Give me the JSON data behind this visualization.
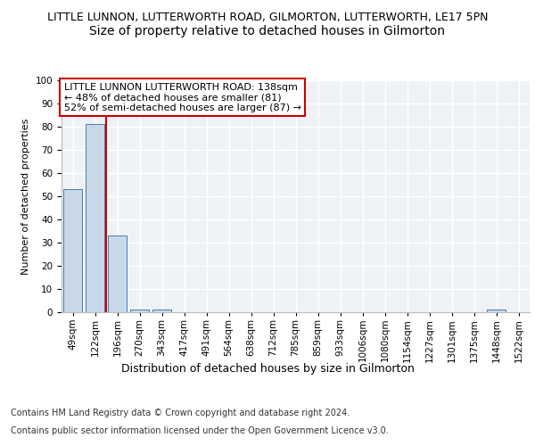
{
  "title": "LITTLE LUNNON, LUTTERWORTH ROAD, GILMORTON, LUTTERWORTH, LE17 5PN",
  "subtitle": "Size of property relative to detached houses in Gilmorton",
  "xlabel": "Distribution of detached houses by size in Gilmorton",
  "ylabel": "Number of detached properties",
  "footer_line1": "Contains HM Land Registry data © Crown copyright and database right 2024.",
  "footer_line2": "Contains public sector information licensed under the Open Government Licence v3.0.",
  "annotation_line1": "LITTLE LUNNON LUTTERWORTH ROAD: 138sqm",
  "annotation_line2": "← 48% of detached houses are smaller (81)",
  "annotation_line3": "52% of semi-detached houses are larger (87) →",
  "bar_labels": [
    "49sqm",
    "122sqm",
    "196sqm",
    "270sqm",
    "343sqm",
    "417sqm",
    "491sqm",
    "564sqm",
    "638sqm",
    "712sqm",
    "785sqm",
    "859sqm",
    "933sqm",
    "1006sqm",
    "1080sqm",
    "1154sqm",
    "1227sqm",
    "1301sqm",
    "1375sqm",
    "1448sqm",
    "1522sqm"
  ],
  "bar_values": [
    53,
    81,
    33,
    1,
    1,
    0,
    0,
    0,
    0,
    0,
    0,
    0,
    0,
    0,
    0,
    0,
    0,
    0,
    0,
    1,
    0
  ],
  "bar_color": "#c8d8e8",
  "bar_edge_color": "#4a7ab5",
  "property_line_x": 1.5,
  "property_line_color": "#cc0000",
  "ylim": [
    0,
    100
  ],
  "yticks": [
    0,
    10,
    20,
    30,
    40,
    50,
    60,
    70,
    80,
    90,
    100
  ],
  "background_color": "#eef2f7",
  "grid_color": "#ffffff",
  "annotation_box_color": "#ffffff",
  "annotation_box_edge": "#cc0000",
  "title_fontsize": 9,
  "subtitle_fontsize": 10,
  "axis_label_fontsize": 9,
  "tick_fontsize": 7.5,
  "annotation_fontsize": 8,
  "ylabel_fontsize": 8
}
